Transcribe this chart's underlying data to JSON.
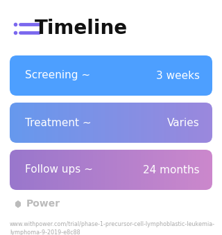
{
  "title": "Timeline",
  "title_icon_color": "#7B68EE",
  "title_fontsize": 20,
  "title_fontweight": "bold",
  "rows": [
    {
      "label": "Screening ~",
      "value": "3 weeks",
      "color_left": "#4d9fff",
      "color_right": "#4d9fff",
      "gradient": false
    },
    {
      "label": "Treatment ~",
      "value": "Varies",
      "color_left": "#6699ee",
      "color_right": "#9b88dd",
      "gradient": true
    },
    {
      "label": "Follow ups ~",
      "value": "24 months",
      "color_left": "#9977cc",
      "color_right": "#cc88cc",
      "gradient": true
    }
  ],
  "bg_color": "#ffffff",
  "text_color": "#ffffff",
  "label_fontsize": 11,
  "value_fontsize": 11,
  "footer_text": "www.withpower.com/trial/phase-1-precursor-cell-lymphoblastic-leukemia-\nlymphoma-9-2019-e8c88",
  "footer_fontsize": 5.8,
  "footer_color": "#aaaaaa",
  "power_logo_color": "#bbbbbb",
  "power_text": "Power",
  "power_fontsize": 10
}
